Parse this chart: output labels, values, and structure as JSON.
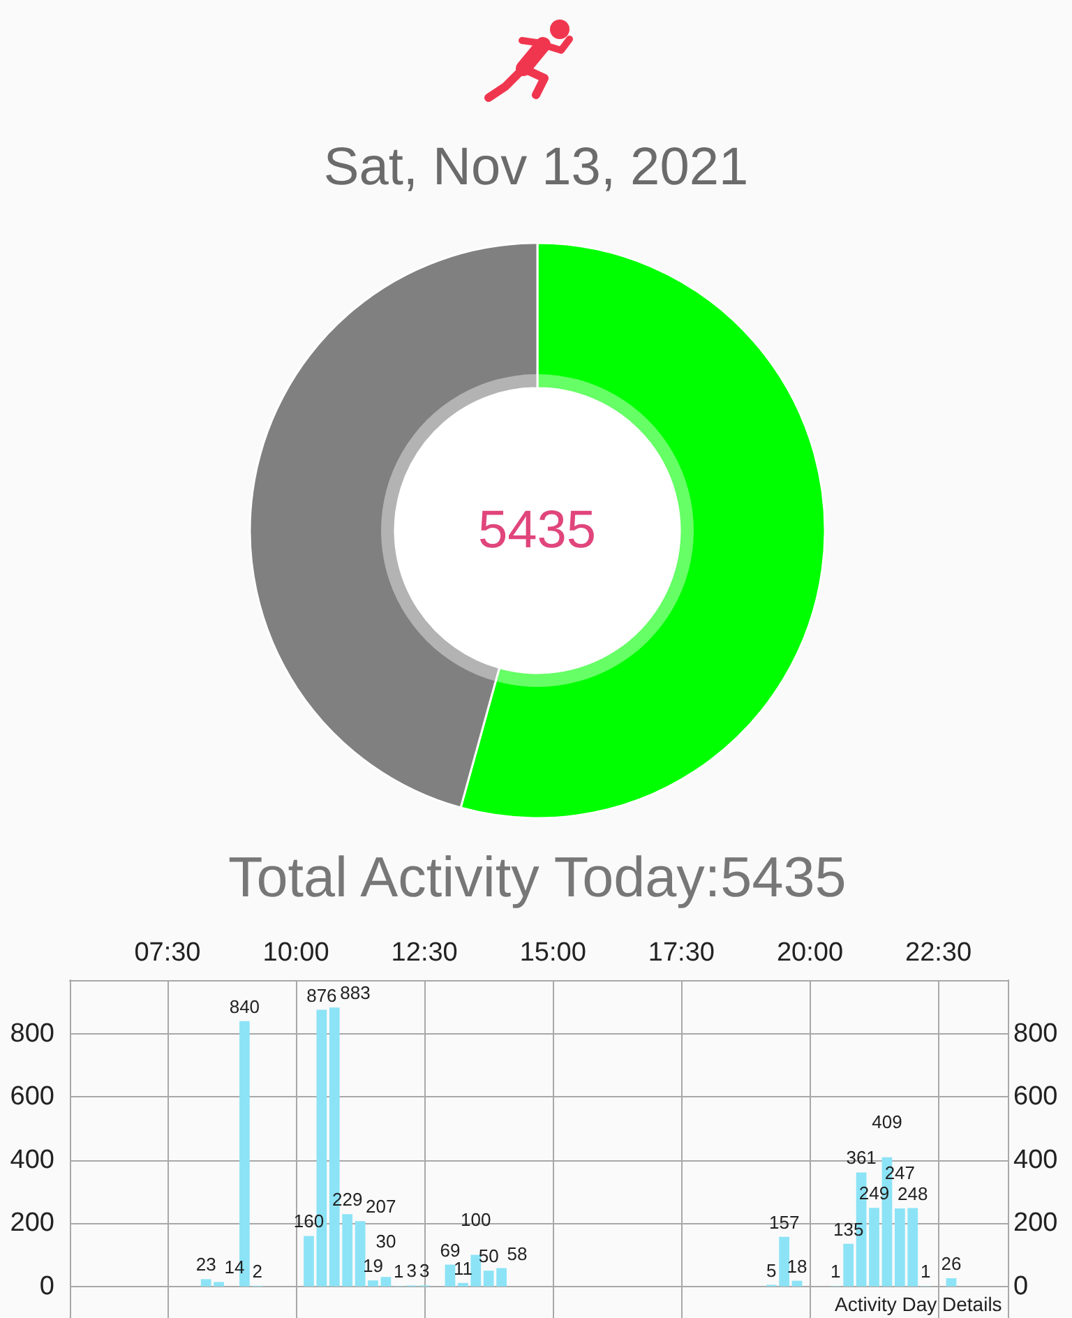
{
  "chart_data": [
    {
      "type": "donut",
      "title": "Sat, Nov 13, 2021",
      "categories": [
        null,
        null
      ],
      "values": [
        54.3,
        45.7
      ],
      "colors": [
        "#00ff00",
        "#808080"
      ],
      "annotations": [
        "5435",
        "Total Activity Today:5435"
      ]
    },
    {
      "type": "bar",
      "x": [
        8.25,
        8.5,
        9,
        9.25,
        10.25,
        10.5,
        10.75,
        11,
        11.25,
        11.5,
        11.75,
        12,
        12.25,
        12.5,
        13,
        13.25,
        13.5,
        13.75,
        14,
        19.25,
        19.5,
        19.75,
        20.5,
        20.75,
        21,
        21.25,
        21.5,
        21.75,
        22,
        22.25,
        22.75
      ],
      "values": [
        23,
        14,
        840,
        2,
        160,
        876,
        883,
        229,
        207,
        19,
        30,
        1,
        3,
        3,
        69,
        11,
        100,
        50,
        58,
        5,
        157,
        18,
        1,
        135,
        361,
        249,
        409,
        247,
        248,
        1,
        26
      ],
      "color": "#8ce3f6",
      "data_labels": true,
      "grid": true,
      "xlim": [
        5.6,
        23.85
      ],
      "xticks": [
        {
          "value": 7.5,
          "label": "07:30"
        },
        {
          "value": 10,
          "label": "10:00"
        },
        {
          "value": 12.5,
          "label": "12:30"
        },
        {
          "value": 15,
          "label": "15:00"
        },
        {
          "value": 17.5,
          "label": "17:30"
        },
        {
          "value": 20,
          "label": "20:00"
        },
        {
          "value": 22.5,
          "label": "22:30"
        }
      ],
      "ylim": [
        -100,
        970
      ],
      "yticks": [
        0,
        200,
        400,
        600,
        800
      ],
      "y2lim": [
        -100,
        970
      ],
      "y2ticks": [
        0,
        200,
        400,
        600,
        800
      ],
      "annotations": [
        "Activity Day Details"
      ]
    }
  ]
}
